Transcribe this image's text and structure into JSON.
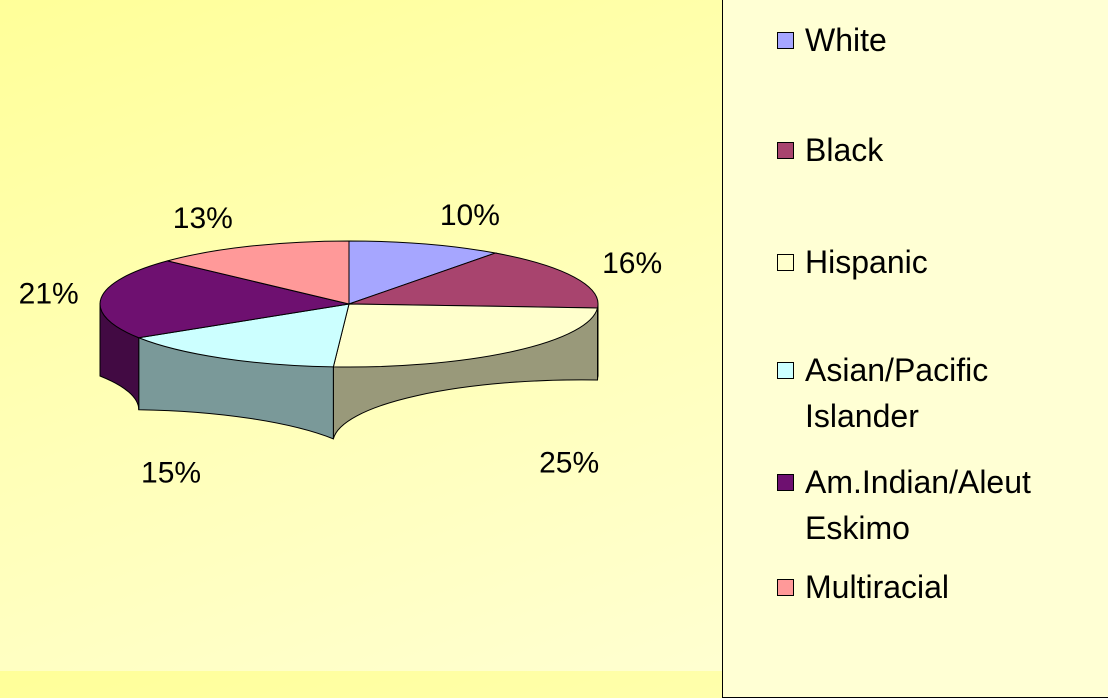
{
  "chart_data": {
    "type": "pie",
    "categories": [
      "White",
      "Black",
      "Hispanic",
      "Asian/Pacific Islander",
      "Am.Indian/Aleut Eskimo",
      "Multiracial"
    ],
    "values": [
      10,
      16,
      25,
      15,
      21,
      13
    ],
    "value_labels": [
      "10%",
      "16%",
      "25%",
      "15%",
      "21%",
      "13%"
    ],
    "colors": [
      "#a6a6ff",
      "#a8446e",
      "#ffffcc",
      "#ccffff",
      "#6e1070",
      "#ff9999"
    ]
  }
}
